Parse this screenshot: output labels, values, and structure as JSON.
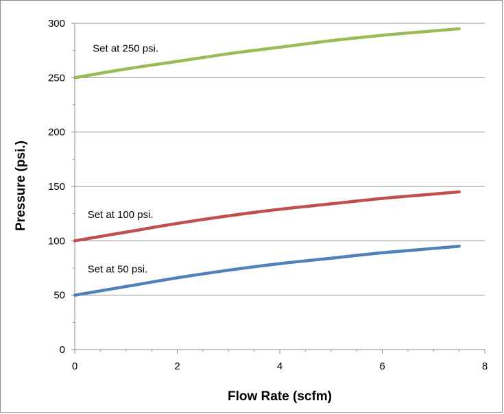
{
  "chart_data": {
    "type": "line",
    "title": "",
    "xlabel": "Flow Rate (scfm)",
    "ylabel": "Pressure (psi.)",
    "xlim": [
      0,
      8
    ],
    "ylim": [
      0,
      300
    ],
    "x_ticks": [
      0,
      2,
      4,
      6,
      8
    ],
    "y_ticks": [
      0,
      50,
      100,
      150,
      200,
      250,
      300
    ],
    "x_tick_labels": [
      "0",
      "2",
      "4",
      "6",
      "8"
    ],
    "y_tick_labels": [
      "0",
      "50",
      "100",
      "150",
      "200",
      "250",
      "300"
    ],
    "grid": "horizontal",
    "legend": "none",
    "series": [
      {
        "color": "#9BBB59",
        "x": [
          0,
          1,
          2,
          3,
          4,
          5,
          6,
          7,
          7.5
        ],
        "y": [
          250,
          258,
          265,
          272,
          278,
          284,
          289,
          293,
          295
        ]
      },
      {
        "color": "#C0504D",
        "x": [
          0,
          1,
          2,
          3,
          4,
          5,
          6,
          7,
          7.5
        ],
        "y": [
          100,
          108,
          116,
          123,
          129,
          134,
          139,
          143,
          145
        ]
      },
      {
        "color": "#4F81BD",
        "x": [
          0,
          1,
          2,
          3,
          4,
          5,
          6,
          7,
          7.5
        ],
        "y": [
          50,
          58,
          66,
          73,
          79,
          84,
          89,
          93,
          95
        ]
      }
    ],
    "annotations": [
      {
        "text": "Set at 250 psi.",
        "x": 0.35,
        "y": 274
      },
      {
        "text": "Set at 100 psi.",
        "x": 0.25,
        "y": 121
      },
      {
        "text": "Set at 50 psi.",
        "x": 0.25,
        "y": 71
      }
    ]
  }
}
